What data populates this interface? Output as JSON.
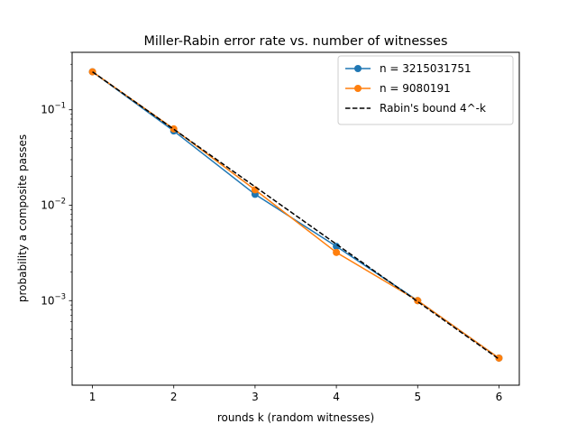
{
  "chart_data": {
    "type": "line",
    "title": "Miller-Rabin error rate vs. number of witnesses",
    "xlabel": "rounds k (random witnesses)",
    "ylabel": "probability a composite passes",
    "x": [
      1,
      2,
      3,
      4,
      5,
      6
    ],
    "xticks": [
      "1",
      "2",
      "3",
      "4",
      "5",
      "6"
    ],
    "yscale": "log",
    "ylim": [
      0.00013,
      0.4
    ],
    "xlim": [
      0.75,
      6.25
    ],
    "yticks": [
      {
        "value": 0.1,
        "base": "10",
        "exp": "−1"
      },
      {
        "value": 0.01,
        "base": "10",
        "exp": "−2"
      },
      {
        "value": 0.001,
        "base": "10",
        "exp": "−3"
      }
    ],
    "grid": false,
    "legend_position": "top-right",
    "series": [
      {
        "name": "n = 3215031751",
        "style": "solid",
        "marker": "circle",
        "color": "#1f77b4",
        "values": [
          0.25,
          0.06,
          0.013,
          0.0037,
          0.001,
          0.00025
        ]
      },
      {
        "name": "n = 9080191",
        "style": "solid",
        "marker": "circle",
        "color": "#ff7f0e",
        "values": [
          0.25,
          0.063,
          0.0145,
          0.0032,
          0.001,
          0.00025
        ]
      },
      {
        "name": "Rabin's bound 4^-k",
        "style": "dashed",
        "marker": "none",
        "color": "#000000",
        "values": [
          0.25,
          0.0625,
          0.015625,
          0.00390625,
          0.0009765625,
          0.000244140625
        ]
      }
    ]
  }
}
